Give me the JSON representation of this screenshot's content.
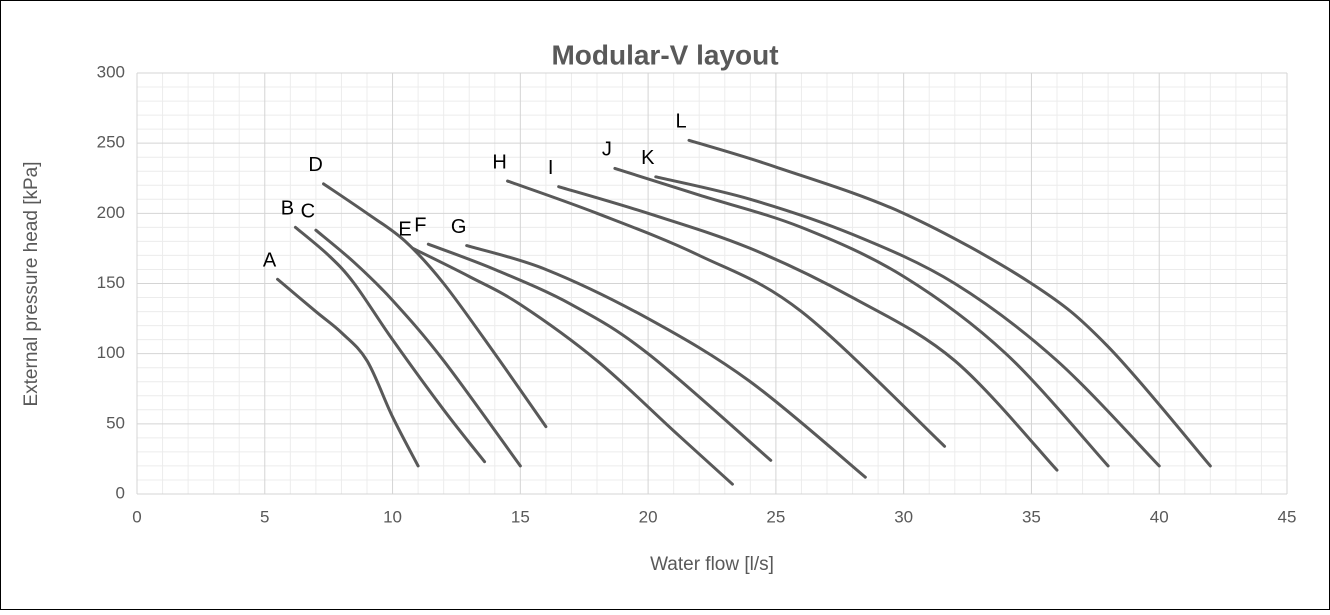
{
  "chart_data": {
    "type": "line",
    "title": "Modular-V layout",
    "x_label": "Water flow [l/s]",
    "y_label": "External pressure head [kPa]",
    "xlim": [
      0,
      45
    ],
    "xticks": [
      0,
      5,
      10,
      15,
      20,
      25,
      30,
      35,
      40,
      45
    ],
    "ylim": [
      0,
      300
    ],
    "yticks": [
      0,
      50,
      100,
      150,
      200,
      250,
      300
    ],
    "grid": true,
    "minor_grid": true,
    "series": [
      {
        "name": "A",
        "color": "#595959",
        "x": [
          5.5,
          7,
          8,
          9,
          10,
          11
        ],
        "values": [
          153,
          130,
          115,
          95,
          55,
          20
        ]
      },
      {
        "name": "B",
        "color": "#595959",
        "x": [
          6.2,
          7.5,
          8.5,
          10,
          12,
          13.6
        ],
        "values": [
          190,
          170,
          150,
          110,
          60,
          23
        ]
      },
      {
        "name": "C",
        "color": "#595959",
        "x": [
          7,
          8.5,
          10,
          12,
          15
        ],
        "values": [
          188,
          165,
          138,
          95,
          20
        ]
      },
      {
        "name": "D",
        "color": "#595959",
        "x": [
          7.3,
          9,
          10.5,
          12,
          14,
          16
        ],
        "values": [
          221,
          200,
          180,
          150,
          100,
          48
        ]
      },
      {
        "name": "E",
        "color": "#595959",
        "x": [
          10.8,
          13,
          15,
          18,
          21,
          23.3
        ],
        "values": [
          175,
          155,
          135,
          95,
          45,
          7
        ]
      },
      {
        "name": "F",
        "color": "#595959",
        "x": [
          11.4,
          14,
          17,
          20,
          24.8
        ],
        "values": [
          178,
          160,
          135,
          100,
          24
        ]
      },
      {
        "name": "G",
        "color": "#595959",
        "x": [
          12.9,
          16,
          20,
          24,
          28.5
        ],
        "values": [
          177,
          160,
          125,
          80,
          12
        ]
      },
      {
        "name": "H",
        "color": "#595959",
        "x": [
          14.5,
          18,
          22,
          26,
          31.6
        ],
        "values": [
          223,
          200,
          170,
          130,
          34
        ]
      },
      {
        "name": "I",
        "color": "#595959",
        "x": [
          16.5,
          20,
          24,
          28,
          32,
          36
        ],
        "values": [
          219,
          200,
          175,
          140,
          95,
          17
        ]
      },
      {
        "name": "J",
        "color": "#595959",
        "x": [
          18.7,
          22,
          26,
          30,
          34,
          38
        ],
        "values": [
          232,
          213,
          190,
          155,
          100,
          20
        ]
      },
      {
        "name": "K",
        "color": "#595959",
        "x": [
          20.3,
          24,
          28,
          32,
          36,
          40
        ],
        "values": [
          226,
          210,
          185,
          150,
          95,
          20
        ]
      },
      {
        "name": "L",
        "color": "#595959",
        "x": [
          21.6,
          25,
          30,
          35,
          38,
          42
        ],
        "values": [
          252,
          233,
          200,
          150,
          105,
          20
        ]
      }
    ]
  }
}
